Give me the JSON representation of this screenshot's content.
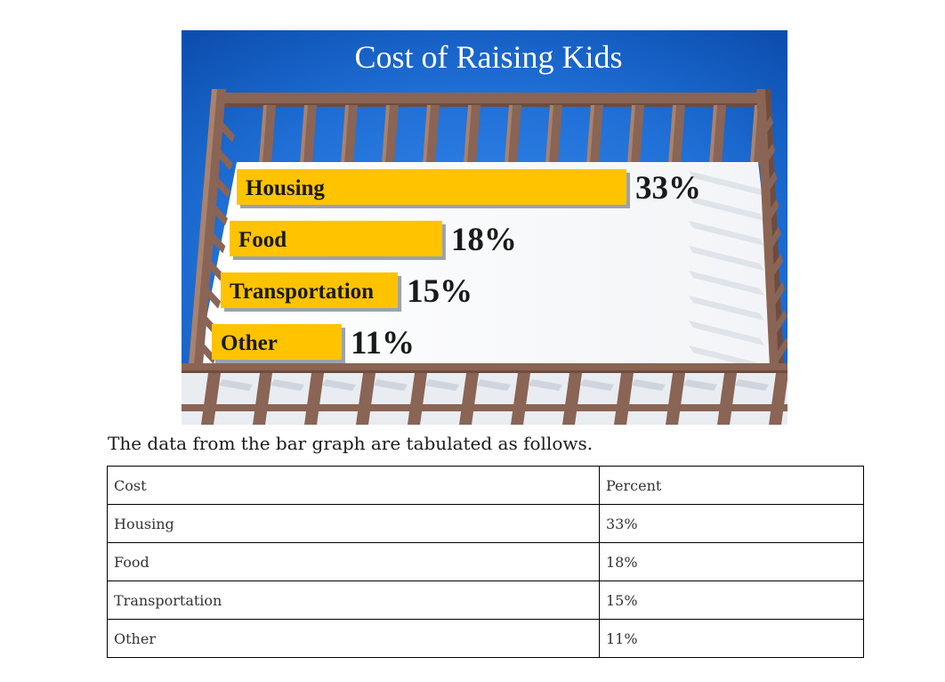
{
  "chart_data": {
    "type": "bar",
    "orientation": "horizontal",
    "title": "Cost of Raising Kids",
    "categories": [
      "Housing",
      "Food",
      "Transportation",
      "Other"
    ],
    "values": [
      33,
      18,
      15,
      11
    ],
    "value_labels": [
      "33%",
      "18%",
      "15%",
      "11%"
    ],
    "unit": "%",
    "grid": false,
    "colors": {
      "bar": "#ffc300",
      "background": "#1f6fd6",
      "crib_wood": "#8a6454"
    }
  },
  "caption": "The data from the bar graph are tabulated as follows.",
  "table": {
    "headers": [
      "Cost",
      "Percent"
    ],
    "rows": [
      [
        "Housing",
        "33%"
      ],
      [
        "Food",
        "18%"
      ],
      [
        "Transportation",
        "15%"
      ],
      [
        "Other",
        "11%"
      ]
    ]
  }
}
